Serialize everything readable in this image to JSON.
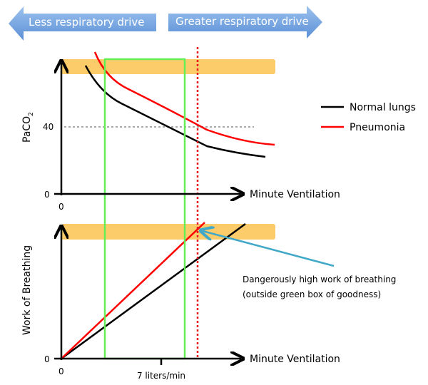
{
  "banner": {
    "left": "Less respiratory drive",
    "right": "Greater respiratory drive"
  },
  "top_chart": {
    "ylabel": "PaCO",
    "ylabel_sub": "2",
    "ytick_40": "40",
    "ytick_0": "0",
    "xtick_0": "0",
    "xlabel": "Minute Ventilation"
  },
  "bottom_chart": {
    "ylabel": "Work of Breathing",
    "ytick_0": "0",
    "xtick_0": "0",
    "xtick_7": "7 liters/min",
    "xlabel": "Minute Ventilation"
  },
  "legend": [
    {
      "label": "Normal lungs",
      "color": "#000000"
    },
    {
      "label": "Pneumonia",
      "color": "#ff0000"
    }
  ],
  "annotation": {
    "line1": "Dangerously high work of breathing",
    "line2": "(outside green box of goodness)"
  },
  "colors": {
    "banner": "#6a9fdc",
    "danger_band": "#fccb6a",
    "good_box": "#66ee55",
    "limit_line": "#e8141e",
    "arrow": "#41a8c8"
  }
}
